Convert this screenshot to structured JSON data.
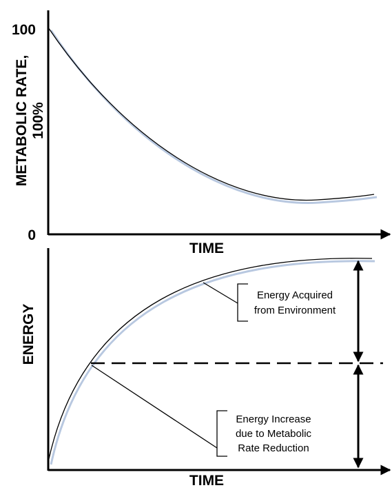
{
  "top_panel": {
    "y_label": [
      "METABOLIC RATE,",
      "100%"
    ],
    "y_ticks": [
      "100",
      "0"
    ],
    "x_label": "TIME"
  },
  "bottom_panel": {
    "y_label": "ENERGY",
    "x_label": "TIME",
    "annotations": [
      [
        "Energy Acquired",
        "from Environment"
      ],
      [
        "Energy Increase",
        "due to Metabolic",
        "Rate Reduction"
      ]
    ]
  }
}
